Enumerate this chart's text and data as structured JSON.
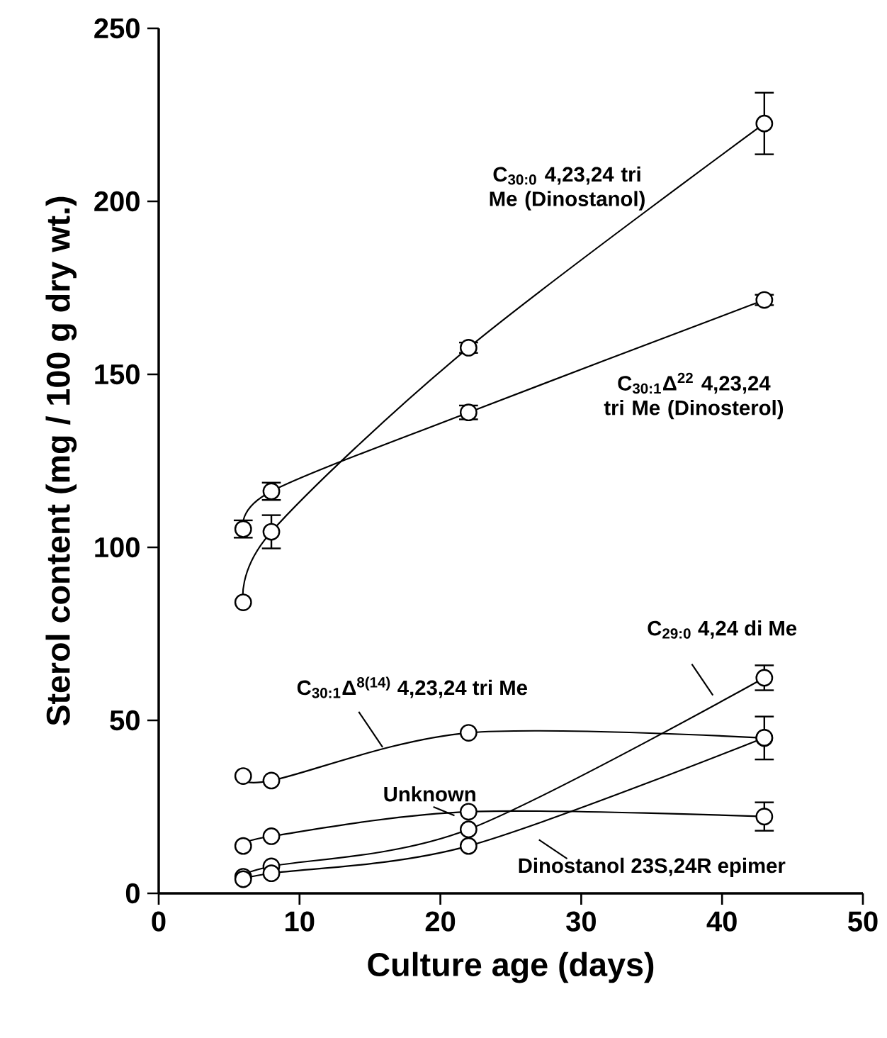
{
  "chart_data": {
    "type": "line",
    "xlabel": "Culture age (days)",
    "ylabel": "Sterol content (mg / 100 g dry wt.)",
    "x": [
      6,
      8,
      22,
      43
    ],
    "series": [
      {
        "name": "C$_{30:0}$ 4,23,24 tri Me (Dinostanol)",
        "color": "#000000",
        "values": [
          84.1,
          104.5,
          157.7,
          222.5
        ],
        "errors": [
          null,
          4.8,
          1.5,
          8.9
        ]
      },
      {
        "name": "C$_{30:1}$Δ$^{22}$ 4,23,24 tri Me (Dinosterol)",
        "color": "#000000",
        "values": [
          105.3,
          116.2,
          139.0,
          171.5
        ],
        "errors": [
          2.5,
          2.5,
          2,
          1.5
        ]
      },
      {
        "name": "C$_{29:0}$ 4,24 di Me",
        "color": "#000000",
        "values": [
          4.8,
          7.8,
          18.5,
          62.3
        ],
        "errors": [
          null,
          null,
          null,
          3.6
        ]
      },
      {
        "name": "C$_{30:1}$Δ$^{8(14)}$ 4,23,24 tri Me",
        "color": "#000000",
        "values": [
          33.9,
          32.6,
          46.4,
          44.9
        ],
        "errors": [
          null,
          null,
          null,
          6.2
        ]
      },
      {
        "name": "Unknown",
        "color": "#000000",
        "values": [
          13.7,
          16.5,
          23.6,
          22.2
        ],
        "errors": [
          null,
          null,
          null,
          4.1
        ]
      },
      {
        "name": "Dinostanol 23S,24R epimer",
        "color": "#000000",
        "values": [
          4.1,
          5.8,
          13.7,
          45.0
        ],
        "errors": [
          null,
          null,
          null,
          null
        ]
      }
    ],
    "xlim": [
      0,
      50
    ],
    "xticks": [
      0,
      10,
      20,
      30,
      40,
      50
    ],
    "ylim": [
      0,
      250
    ],
    "yticks": [
      0,
      50,
      100,
      150,
      200,
      250
    ],
    "marker": "circle",
    "line_style": "solid"
  }
}
